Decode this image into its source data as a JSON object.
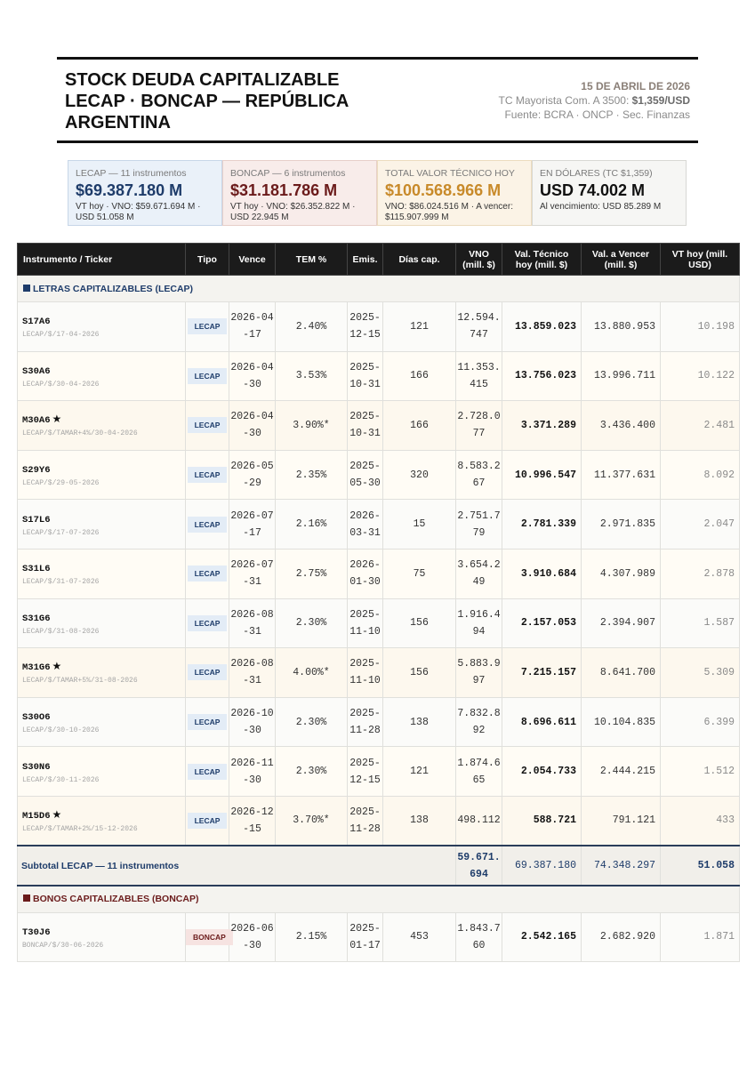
{
  "header": {
    "title_line1": "STOCK DEUDA CAPITALIZABLE",
    "title_line2": "LECAP · BONCAP — REPÚBLICA",
    "title_line3": "ARGENTINA",
    "date": "15 DE ABRIL DE 2026",
    "tc_label": "TC Mayorista Com. A 3500:",
    "tc_value": "$1,359/USD",
    "source": "Fuente: BCRA · ONCP · Sec. Finanzas"
  },
  "cards": [
    {
      "label": "LECAP — 11 instrumentos",
      "value": "$69.387.180 M",
      "sub": "VT hoy · VNO: $59.671.694 M · USD 51.058 M"
    },
    {
      "label": "BONCAP — 6 instrumentos",
      "value": "$31.181.786 M",
      "sub": "VT hoy · VNO: $26.352.822 M · USD 22.945 M"
    },
    {
      "label": "TOTAL VALOR TÉCNICO HOY",
      "value": "$100.568.966 M",
      "sub": "VNO: $86.024.516 M · A vencer: $115.907.999 M"
    },
    {
      "label": "EN DÓLARES (TC $1,359)",
      "value": "USD 74.002 M",
      "sub": "Al vencimiento: USD 85.289 M"
    }
  ],
  "columns": [
    "Instrumento / Ticker",
    "Tipo",
    "Vence",
    "TEM %",
    "Emis.",
    "Días cap.",
    "VNO (mill. $)",
    "Val. Técnico hoy (mill. $)",
    "Val. a Vencer (mill. $)",
    "VT hoy (mill. USD)"
  ],
  "lecap_section": "LETRAS CAPITALIZABLES (LECAP)",
  "lecap_rows": [
    {
      "ticker": "S17A6",
      "star": "",
      "sub": "LECAP/$/17-04-2026",
      "tipo": "LECAP",
      "vence": "2026-04-17",
      "tem": "2.40%",
      "emis": "2025-12-15",
      "dias": "121",
      "vno": "12.594.747",
      "vt": "13.859.023",
      "venc": "13.880.953",
      "usd": "10.198"
    },
    {
      "ticker": "S30A6",
      "star": "",
      "sub": "LECAP/$/30-04-2026",
      "tipo": "LECAP",
      "vence": "2026-04-30",
      "tem": "3.53%",
      "emis": "2025-10-31",
      "dias": "166",
      "vno": "11.353.415",
      "vt": "13.756.023",
      "venc": "13.996.711",
      "usd": "10.122"
    },
    {
      "ticker": "M30A6",
      "star": "★",
      "sub": "LECAP/$/TAMAR+4%/30-04-2026",
      "tipo": "LECAP",
      "vence": "2026-04-30",
      "tem": "3.90%*",
      "emis": "2025-10-31",
      "dias": "166",
      "vno": "2.728.077",
      "vt": "3.371.289",
      "venc": "3.436.400",
      "usd": "2.481"
    },
    {
      "ticker": "S29Y6",
      "star": "",
      "sub": "LECAP/$/29-05-2026",
      "tipo": "LECAP",
      "vence": "2026-05-29",
      "tem": "2.35%",
      "emis": "2025-05-30",
      "dias": "320",
      "vno": "8.583.267",
      "vt": "10.996.547",
      "venc": "11.377.631",
      "usd": "8.092"
    },
    {
      "ticker": "S17L6",
      "star": "",
      "sub": "LECAP/$/17-07-2026",
      "tipo": "LECAP",
      "vence": "2026-07-17",
      "tem": "2.16%",
      "emis": "2026-03-31",
      "dias": "15",
      "vno": "2.751.779",
      "vt": "2.781.339",
      "venc": "2.971.835",
      "usd": "2.047"
    },
    {
      "ticker": "S31L6",
      "star": "",
      "sub": "LECAP/$/31-07-2026",
      "tipo": "LECAP",
      "vence": "2026-07-31",
      "tem": "2.75%",
      "emis": "2026-01-30",
      "dias": "75",
      "vno": "3.654.249",
      "vt": "3.910.684",
      "venc": "4.307.989",
      "usd": "2.878"
    },
    {
      "ticker": "S31G6",
      "star": "",
      "sub": "LECAP/$/31-08-2026",
      "tipo": "LECAP",
      "vence": "2026-08-31",
      "tem": "2.30%",
      "emis": "2025-11-10",
      "dias": "156",
      "vno": "1.916.494",
      "vt": "2.157.053",
      "venc": "2.394.907",
      "usd": "1.587"
    },
    {
      "ticker": "M31G6",
      "star": "★",
      "sub": "LECAP/$/TAMAR+5%/31-08-2026",
      "tipo": "LECAP",
      "vence": "2026-08-31",
      "tem": "4.00%*",
      "emis": "2025-11-10",
      "dias": "156",
      "vno": "5.883.997",
      "vt": "7.215.157",
      "venc": "8.641.700",
      "usd": "5.309"
    },
    {
      "ticker": "S30O6",
      "star": "",
      "sub": "LECAP/$/30-10-2026",
      "tipo": "LECAP",
      "vence": "2026-10-30",
      "tem": "2.30%",
      "emis": "2025-11-28",
      "dias": "138",
      "vno": "7.832.892",
      "vt": "8.696.611",
      "venc": "10.104.835",
      "usd": "6.399"
    },
    {
      "ticker": "S30N6",
      "star": "",
      "sub": "LECAP/$/30-11-2026",
      "tipo": "LECAP",
      "vence": "2026-11-30",
      "tem": "2.30%",
      "emis": "2025-12-15",
      "dias": "121",
      "vno": "1.874.665",
      "vt": "2.054.733",
      "venc": "2.444.215",
      "usd": "1.512"
    },
    {
      "ticker": "M15D6",
      "star": "★",
      "sub": "LECAP/$/TAMAR+2%/15-12-2026",
      "tipo": "LECAP",
      "vence": "2026-12-15",
      "tem": "3.70%*",
      "emis": "2025-11-28",
      "dias": "138",
      "vno": "498.112",
      "vt": "588.721",
      "venc": "791.121",
      "usd": "433"
    }
  ],
  "lecap_subtotal": {
    "label": "Subtotal LECAP — 11 instrumentos",
    "vno": "59.671.694",
    "vt": "69.387.180",
    "venc": "74.348.297",
    "usd": "51.058"
  },
  "boncap_section": "BONOS CAPITALIZABLES (BONCAP)",
  "boncap_rows": [
    {
      "ticker": "T30J6",
      "star": "",
      "sub": "BONCAP/$/30-06-2026",
      "tipo": "BONCAP",
      "vence": "2026-06-30",
      "tem": "2.15%",
      "emis": "2025-01-17",
      "dias": "453",
      "vno": "1.843.760",
      "vt": "2.542.165",
      "venc": "2.682.920",
      "usd": "1.871"
    }
  ]
}
